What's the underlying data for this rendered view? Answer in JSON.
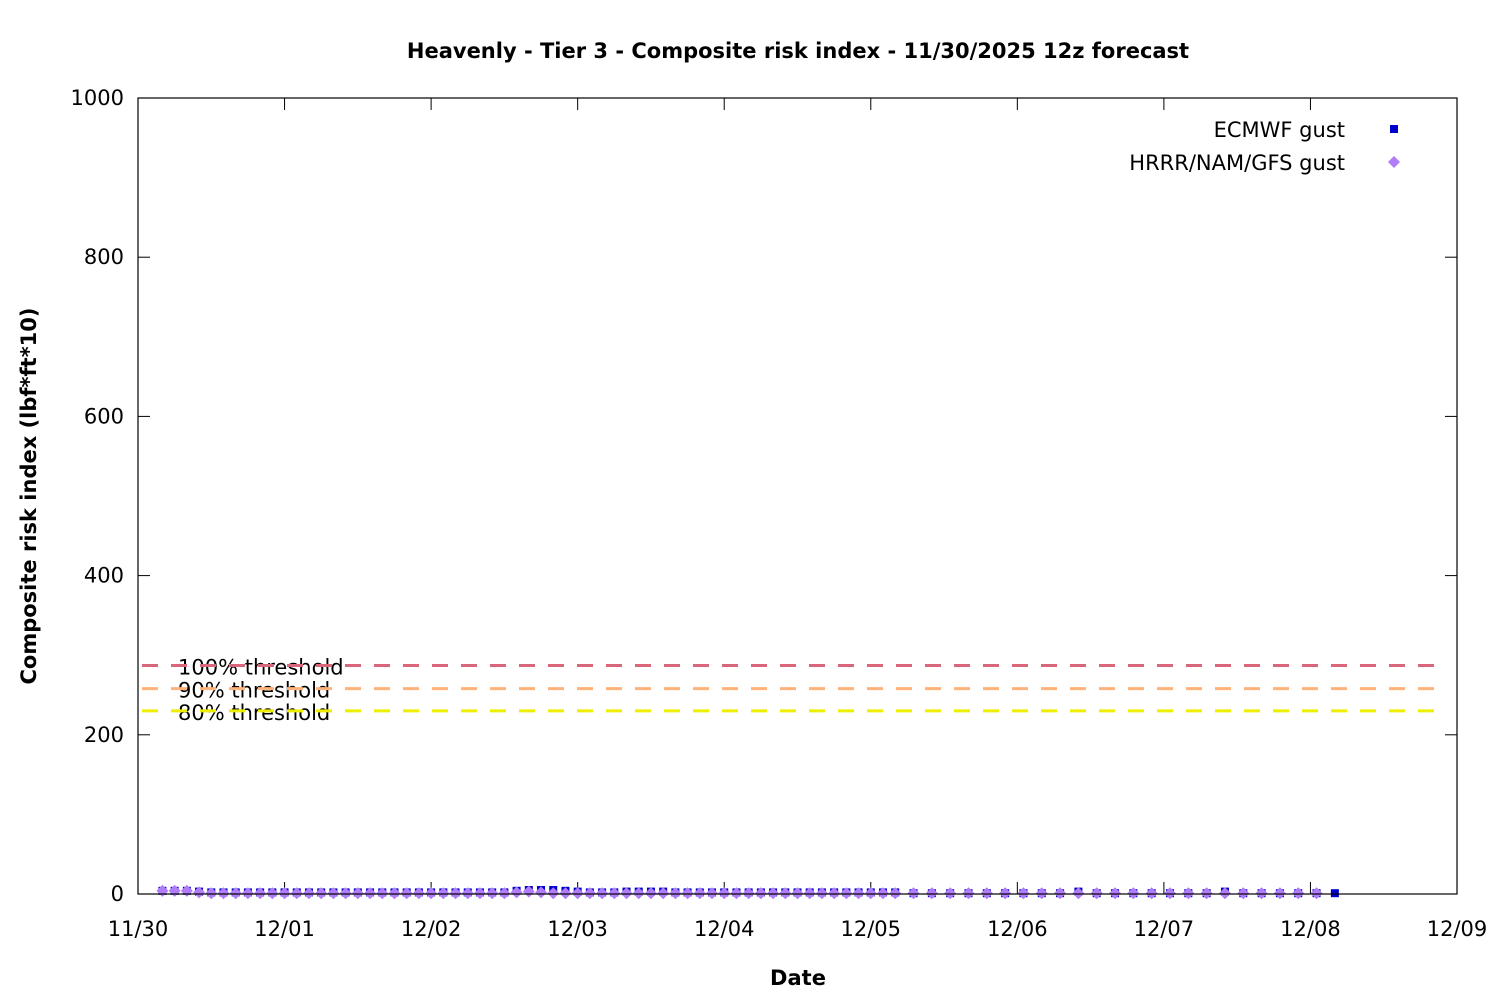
{
  "chart_data": {
    "type": "scatter",
    "title": "Heavenly - Tier 3 - Composite risk index - 11/30/2025 12z forecast",
    "xlabel": "Date",
    "ylabel": "Composite risk index (lbf*ft*10)",
    "ylim": [
      0,
      1000
    ],
    "yticks": [
      "0",
      "200",
      "400",
      "600",
      "800",
      "1000"
    ],
    "xlim": [
      "11/30",
      "12/09"
    ],
    "xticks": [
      "11/30",
      "12/01",
      "12/02",
      "12/03",
      "12/04",
      "12/05",
      "12/06",
      "12/07",
      "12/08",
      "12/09"
    ],
    "grid": false,
    "legend_position": "top-right",
    "thresholds": [
      {
        "label": "100% threshold",
        "value": 287,
        "color": "#d9667a"
      },
      {
        "label": "90% threshold",
        "value": 258,
        "color": "#ffb27a"
      },
      {
        "label": "80% threshold",
        "value": 230,
        "color": "#eeee00"
      }
    ],
    "series": [
      {
        "name": "ECMWF gust",
        "marker": "square",
        "color": "#0000cc",
        "points": [
          [
            "11/30 04",
            4
          ],
          [
            "11/30 06",
            4
          ],
          [
            "11/30 08",
            4
          ],
          [
            "11/30 10",
            3
          ],
          [
            "11/30 12",
            2
          ],
          [
            "11/30 14",
            2
          ],
          [
            "11/30 16",
            2
          ],
          [
            "11/30 18",
            2
          ],
          [
            "11/30 20",
            2
          ],
          [
            "11/30 22",
            2
          ],
          [
            "12/01 00",
            2
          ],
          [
            "12/01 02",
            2
          ],
          [
            "12/01 04",
            2
          ],
          [
            "12/01 06",
            2
          ],
          [
            "12/01 08",
            2
          ],
          [
            "12/01 10",
            2
          ],
          [
            "12/01 12",
            2
          ],
          [
            "12/01 14",
            2
          ],
          [
            "12/01 16",
            2
          ],
          [
            "12/01 18",
            2
          ],
          [
            "12/01 20",
            2
          ],
          [
            "12/01 22",
            2
          ],
          [
            "12/02 00",
            2
          ],
          [
            "12/02 02",
            2
          ],
          [
            "12/02 04",
            2
          ],
          [
            "12/02 06",
            2
          ],
          [
            "12/02 08",
            2
          ],
          [
            "12/02 10",
            2
          ],
          [
            "12/02 12",
            2
          ],
          [
            "12/02 14",
            4
          ],
          [
            "12/02 16",
            5
          ],
          [
            "12/02 18",
            5
          ],
          [
            "12/02 20",
            5
          ],
          [
            "12/02 22",
            4
          ],
          [
            "12/03 00",
            3
          ],
          [
            "12/03 02",
            2
          ],
          [
            "12/03 04",
            2
          ],
          [
            "12/03 06",
            2
          ],
          [
            "12/03 08",
            3
          ],
          [
            "12/03 10",
            3
          ],
          [
            "12/03 12",
            3
          ],
          [
            "12/03 14",
            3
          ],
          [
            "12/03 16",
            2
          ],
          [
            "12/03 18",
            2
          ],
          [
            "12/03 20",
            2
          ],
          [
            "12/03 22",
            2
          ],
          [
            "12/04 00",
            2
          ],
          [
            "12/04 02",
            2
          ],
          [
            "12/04 04",
            2
          ],
          [
            "12/04 06",
            2
          ],
          [
            "12/04 08",
            2
          ],
          [
            "12/04 10",
            2
          ],
          [
            "12/04 12",
            2
          ],
          [
            "12/04 14",
            2
          ],
          [
            "12/04 16",
            2
          ],
          [
            "12/04 18",
            2
          ],
          [
            "12/04 20",
            2
          ],
          [
            "12/04 22",
            2
          ],
          [
            "12/05 00",
            2
          ],
          [
            "12/05 02",
            2
          ],
          [
            "12/05 04",
            2
          ],
          [
            "12/05 07",
            1
          ],
          [
            "12/05 10",
            1
          ],
          [
            "12/05 13",
            1
          ],
          [
            "12/05 16",
            1
          ],
          [
            "12/05 19",
            1
          ],
          [
            "12/05 22",
            1
          ],
          [
            "12/06 01",
            1
          ],
          [
            "12/06 04",
            1
          ],
          [
            "12/06 07",
            1
          ],
          [
            "12/06 10",
            3
          ],
          [
            "12/06 13",
            1
          ],
          [
            "12/06 16",
            1
          ],
          [
            "12/06 19",
            1
          ],
          [
            "12/06 22",
            1
          ],
          [
            "12/07 01",
            1
          ],
          [
            "12/07 04",
            1
          ],
          [
            "12/07 07",
            1
          ],
          [
            "12/07 10",
            3
          ],
          [
            "12/07 13",
            1
          ],
          [
            "12/07 16",
            1
          ],
          [
            "12/07 19",
            1
          ],
          [
            "12/07 22",
            1
          ],
          [
            "12/08 01",
            1
          ],
          [
            "12/08 04",
            1
          ]
        ]
      },
      {
        "name": "HRRR/NAM/GFS gust",
        "marker": "diamond",
        "color": "#b07cf7",
        "points": [
          [
            "11/30 04",
            4
          ],
          [
            "11/30 06",
            4
          ],
          [
            "11/30 08",
            4
          ],
          [
            "11/30 10",
            2
          ],
          [
            "11/30 12",
            1
          ],
          [
            "11/30 14",
            1
          ],
          [
            "11/30 16",
            1
          ],
          [
            "11/30 18",
            1
          ],
          [
            "11/30 20",
            1
          ],
          [
            "11/30 22",
            1
          ],
          [
            "12/01 00",
            1
          ],
          [
            "12/01 02",
            1
          ],
          [
            "12/01 04",
            1
          ],
          [
            "12/01 06",
            1
          ],
          [
            "12/01 08",
            1
          ],
          [
            "12/01 10",
            1
          ],
          [
            "12/01 12",
            1
          ],
          [
            "12/01 14",
            1
          ],
          [
            "12/01 16",
            1
          ],
          [
            "12/01 18",
            1
          ],
          [
            "12/01 20",
            1
          ],
          [
            "12/01 22",
            1
          ],
          [
            "12/02 00",
            1
          ],
          [
            "12/02 02",
            1
          ],
          [
            "12/02 04",
            1
          ],
          [
            "12/02 06",
            1
          ],
          [
            "12/02 08",
            1
          ],
          [
            "12/02 10",
            1
          ],
          [
            "12/02 12",
            1
          ],
          [
            "12/02 14",
            2
          ],
          [
            "12/02 16",
            3
          ],
          [
            "12/02 18",
            2
          ],
          [
            "12/02 20",
            1
          ],
          [
            "12/02 22",
            1
          ],
          [
            "12/03 00",
            1
          ],
          [
            "12/03 02",
            1
          ],
          [
            "12/03 04",
            1
          ],
          [
            "12/03 06",
            1
          ],
          [
            "12/03 08",
            1
          ],
          [
            "12/03 10",
            1
          ],
          [
            "12/03 12",
            1
          ],
          [
            "12/03 14",
            1
          ],
          [
            "12/03 16",
            1
          ],
          [
            "12/03 18",
            1
          ],
          [
            "12/03 20",
            1
          ],
          [
            "12/03 22",
            1
          ],
          [
            "12/04 00",
            1
          ],
          [
            "12/04 02",
            1
          ],
          [
            "12/04 04",
            1
          ],
          [
            "12/04 06",
            1
          ],
          [
            "12/04 08",
            1
          ],
          [
            "12/04 10",
            1
          ],
          [
            "12/04 12",
            1
          ],
          [
            "12/04 14",
            1
          ],
          [
            "12/04 16",
            1
          ],
          [
            "12/04 18",
            1
          ],
          [
            "12/04 20",
            1
          ],
          [
            "12/04 22",
            1
          ],
          [
            "12/05 00",
            1
          ],
          [
            "12/05 02",
            1
          ],
          [
            "12/05 04",
            1
          ],
          [
            "12/05 07",
            1
          ],
          [
            "12/05 10",
            1
          ],
          [
            "12/05 13",
            1
          ],
          [
            "12/05 16",
            1
          ],
          [
            "12/05 19",
            1
          ],
          [
            "12/05 22",
            1
          ],
          [
            "12/06 01",
            1
          ],
          [
            "12/06 04",
            1
          ],
          [
            "12/06 07",
            1
          ],
          [
            "12/06 10",
            1
          ],
          [
            "12/06 13",
            1
          ],
          [
            "12/06 16",
            1
          ],
          [
            "12/06 19",
            1
          ],
          [
            "12/06 22",
            1
          ],
          [
            "12/07 01",
            1
          ],
          [
            "12/07 04",
            1
          ],
          [
            "12/07 07",
            1
          ],
          [
            "12/07 10",
            1
          ],
          [
            "12/07 13",
            1
          ],
          [
            "12/07 16",
            1
          ],
          [
            "12/07 19",
            1
          ],
          [
            "12/07 22",
            1
          ],
          [
            "12/08 01",
            1
          ]
        ]
      }
    ]
  }
}
